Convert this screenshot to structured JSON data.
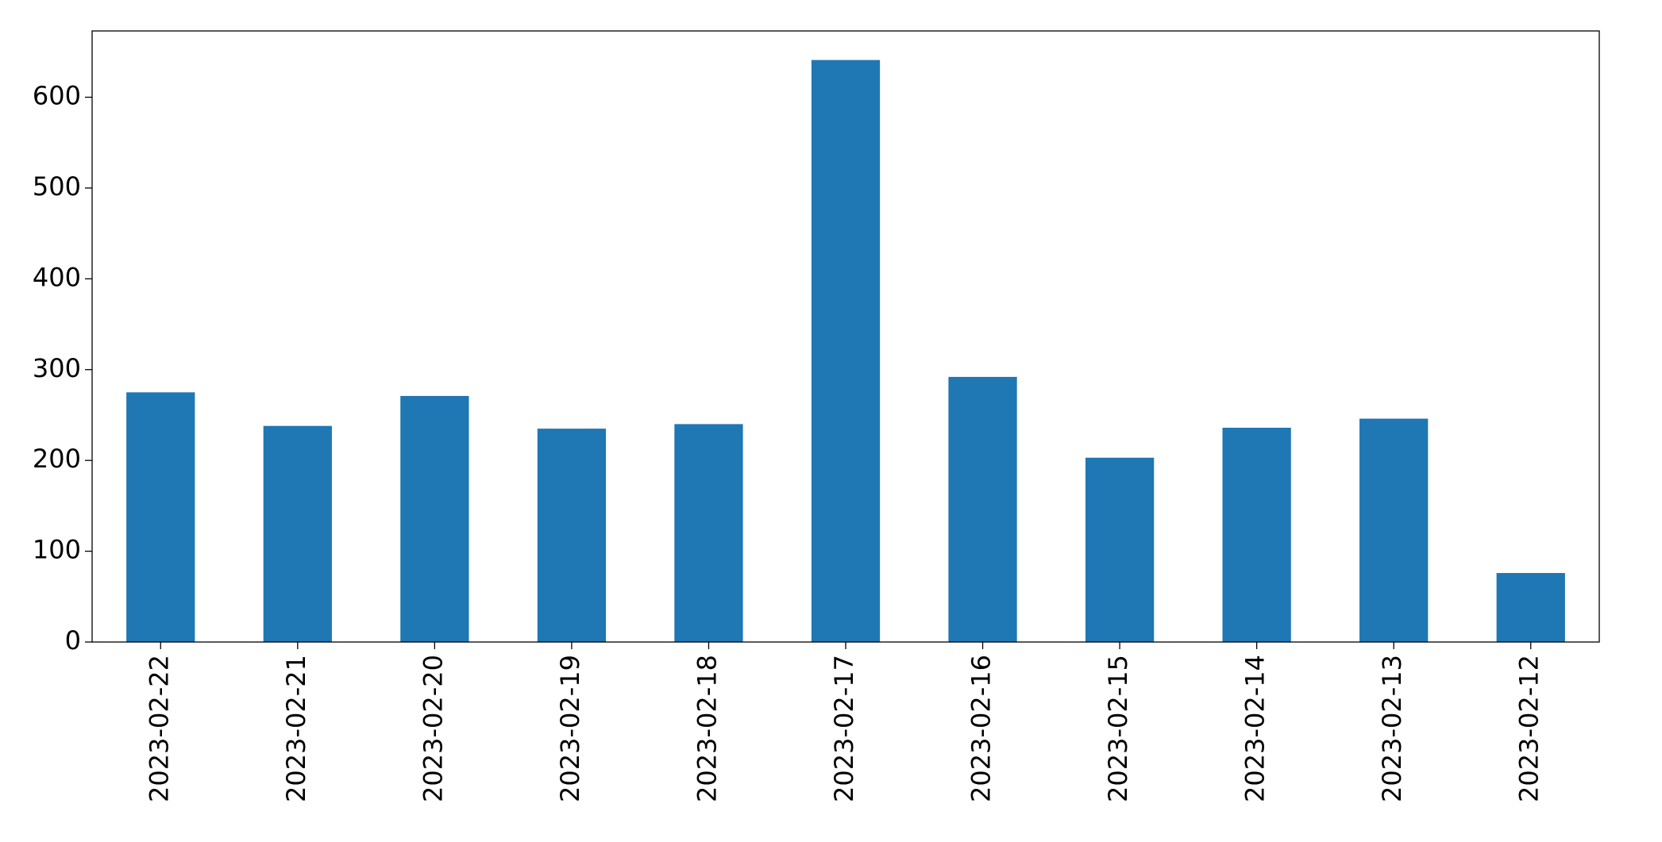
{
  "chart_data": {
    "type": "bar",
    "categories": [
      "2023-02-22",
      "2023-02-21",
      "2023-02-20",
      "2023-02-19",
      "2023-02-18",
      "2023-02-17",
      "2023-02-16",
      "2023-02-15",
      "2023-02-14",
      "2023-02-13",
      "2023-02-12"
    ],
    "values": [
      275,
      238,
      271,
      235,
      240,
      641,
      292,
      203,
      236,
      246,
      76
    ],
    "color": "#1f77b4",
    "ylim": [
      0,
      673
    ],
    "yticks": [
      0,
      100,
      200,
      300,
      400,
      500,
      600
    ],
    "grid": false
  }
}
